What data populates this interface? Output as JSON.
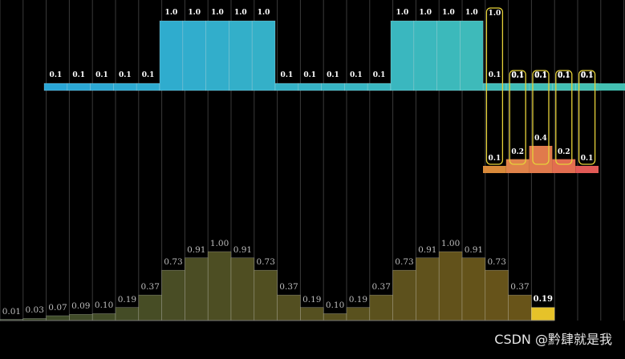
{
  "input_signal": {
    "values": [
      0.1,
      0.1,
      0.1,
      0.1,
      0.1,
      1.0,
      1.0,
      1.0,
      1.0,
      1.0,
      0.1,
      0.1,
      0.1,
      0.1,
      0.1,
      1.0,
      1.0,
      1.0,
      1.0,
      0.1,
      0.1,
      0.1,
      0.1,
      0.1
    ],
    "labels": [
      "0.1",
      "0.1",
      "0.1",
      "0.1",
      "0.1",
      "1.0",
      "1.0",
      "1.0",
      "1.0",
      "1.0",
      "0.1",
      "0.1",
      "0.1",
      "0.1",
      "0.1",
      "1.0",
      "1.0",
      "1.0",
      "1.0",
      "0.1",
      "0.1",
      "0.1",
      "0.1",
      "0.1"
    ],
    "color_start": "#2aa6d6",
    "color_end": "#43c0b2"
  },
  "kernel": {
    "values": [
      0.1,
      0.2,
      0.4,
      0.2,
      0.1
    ],
    "labels": [
      "0.1",
      "0.2",
      "0.4",
      "0.2",
      "0.1"
    ],
    "colors": [
      "#d98a3a",
      "#e0834a",
      "#e07a4c",
      "#e26d50",
      "#e25a56"
    ]
  },
  "highlight_labels": [
    "1.0",
    "0.1",
    "0.1",
    "0.1",
    "0.1"
  ],
  "output": {
    "values": [
      0.01,
      0.03,
      0.07,
      0.09,
      0.1,
      0.19,
      0.37,
      0.73,
      0.91,
      1.0,
      0.91,
      0.73,
      0.37,
      0.19,
      0.1,
      0.19,
      0.37,
      0.73,
      0.91,
      1.0,
      0.91,
      0.73,
      0.37,
      0.19
    ],
    "labels": [
      "0.01",
      "0.03",
      "0.07",
      "0.09",
      "0.10",
      "0.19",
      "0.37",
      "0.73",
      "0.91",
      "1.00",
      "0.91",
      "0.73",
      "0.37",
      "0.19",
      "0.10",
      "0.19",
      "0.37",
      "0.73",
      "0.91",
      "1.00",
      "0.91",
      "0.73",
      "0.37",
      "0.19"
    ],
    "active_index": 23,
    "active_color": "#e6c229",
    "color_start": "#3a4a2a",
    "color_end": "#6a5418"
  },
  "watermark": "CSDN @黔肆就是我"
}
